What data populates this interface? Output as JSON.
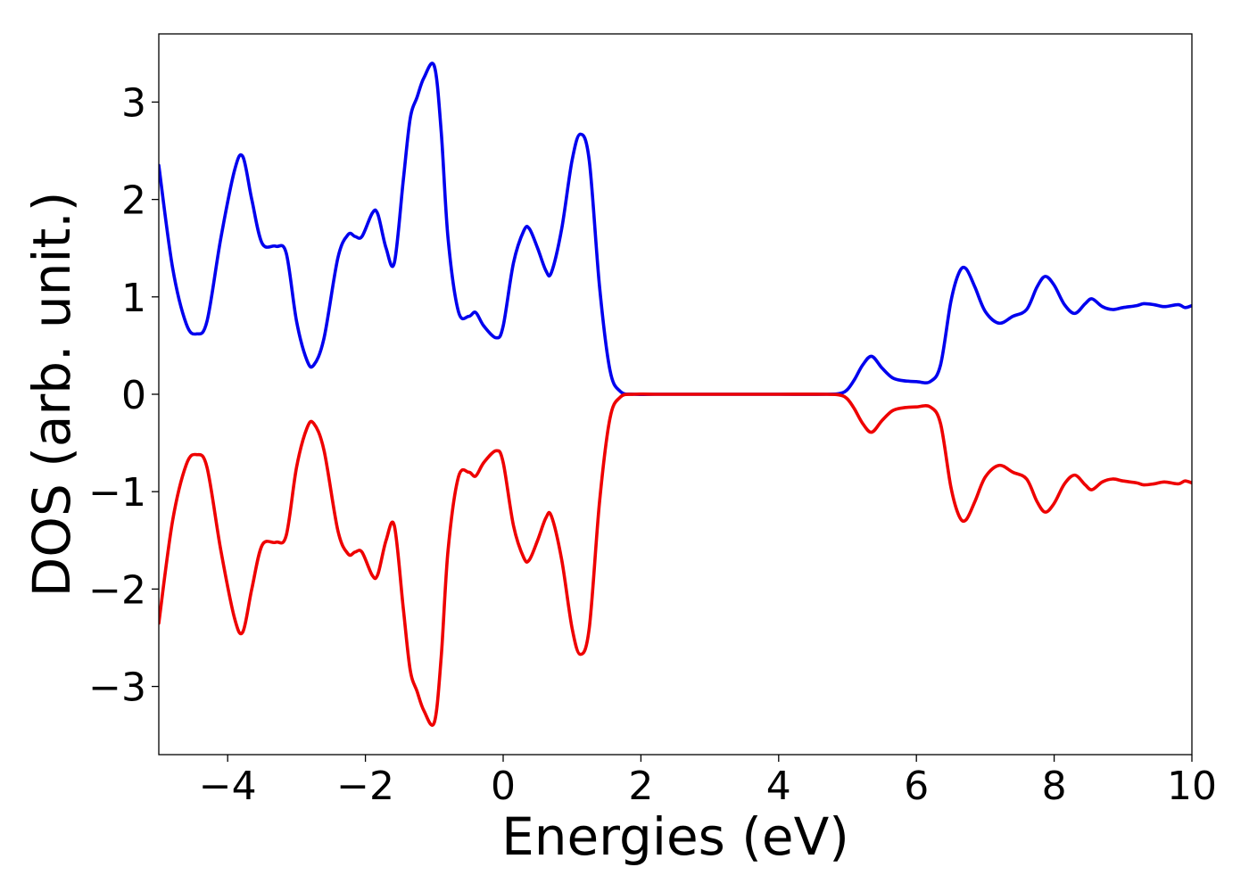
{
  "chart_data": {
    "type": "line",
    "xlabel": "Energies (eV)",
    "ylabel": "DOS (arb. unit.)",
    "xlim": [
      -5,
      10
    ],
    "ylim": [
      -3.7,
      3.7
    ],
    "xticks": [
      -4,
      -2,
      0,
      2,
      4,
      6,
      8,
      10
    ],
    "yticks": [
      -3,
      -2,
      -1,
      0,
      1,
      2,
      3
    ],
    "grid": false,
    "legend": "none",
    "series": [
      {
        "color": "#0000ee",
        "x": [
          -5.0,
          -4.8,
          -4.6,
          -4.45,
          -4.3,
          -4.1,
          -3.9,
          -3.78,
          -3.65,
          -3.5,
          -3.3,
          -3.15,
          -3.0,
          -2.85,
          -2.75,
          -2.6,
          -2.4,
          -2.25,
          -2.15,
          -2.05,
          -1.9,
          -1.82,
          -1.7,
          -1.58,
          -1.45,
          -1.35,
          -1.25,
          -1.15,
          -1.0,
          -0.9,
          -0.8,
          -0.65,
          -0.5,
          -0.4,
          -0.28,
          -0.1,
          0.0,
          0.15,
          0.3,
          0.38,
          0.5,
          0.62,
          0.7,
          0.85,
          1.0,
          1.12,
          1.25,
          1.4,
          1.55,
          1.7,
          1.9,
          2.2,
          3.0,
          4.0,
          4.7,
          4.9,
          5.0,
          5.1,
          5.22,
          5.35,
          5.5,
          5.65,
          5.8,
          6.0,
          6.2,
          6.35,
          6.5,
          6.62,
          6.72,
          6.85,
          7.0,
          7.2,
          7.4,
          7.6,
          7.75,
          7.87,
          8.0,
          8.15,
          8.3,
          8.45,
          8.55,
          8.7,
          8.85,
          9.0,
          9.2,
          9.3,
          9.45,
          9.6,
          9.8,
          9.9,
          10.0
        ],
        "values": [
          2.35,
          1.3,
          0.72,
          0.62,
          0.75,
          1.6,
          2.3,
          2.44,
          2.0,
          1.55,
          1.52,
          1.45,
          0.75,
          0.35,
          0.3,
          0.58,
          1.4,
          1.64,
          1.62,
          1.62,
          1.86,
          1.85,
          1.5,
          1.35,
          2.2,
          2.83,
          3.05,
          3.25,
          3.37,
          2.7,
          1.6,
          0.85,
          0.8,
          0.84,
          0.7,
          0.58,
          0.7,
          1.35,
          1.68,
          1.7,
          1.5,
          1.27,
          1.25,
          1.7,
          2.4,
          2.67,
          2.4,
          1.1,
          0.25,
          0.03,
          0.0,
          0.0,
          0.0,
          0.0,
          0.0,
          0.01,
          0.05,
          0.15,
          0.3,
          0.39,
          0.27,
          0.17,
          0.14,
          0.13,
          0.13,
          0.3,
          0.95,
          1.25,
          1.29,
          1.1,
          0.85,
          0.73,
          0.8,
          0.87,
          1.1,
          1.21,
          1.12,
          0.92,
          0.83,
          0.93,
          0.98,
          0.9,
          0.87,
          0.89,
          0.91,
          0.93,
          0.92,
          0.9,
          0.92,
          0.89,
          0.91
        ]
      },
      {
        "color": "#ee0000",
        "x": [
          -5.0,
          -4.8,
          -4.6,
          -4.45,
          -4.3,
          -4.1,
          -3.9,
          -3.78,
          -3.65,
          -3.5,
          -3.3,
          -3.15,
          -3.0,
          -2.85,
          -2.75,
          -2.6,
          -2.4,
          -2.25,
          -2.15,
          -2.05,
          -1.9,
          -1.82,
          -1.7,
          -1.58,
          -1.45,
          -1.35,
          -1.25,
          -1.15,
          -1.0,
          -0.9,
          -0.8,
          -0.65,
          -0.5,
          -0.4,
          -0.28,
          -0.1,
          0.0,
          0.15,
          0.3,
          0.38,
          0.5,
          0.62,
          0.7,
          0.85,
          1.0,
          1.12,
          1.25,
          1.4,
          1.55,
          1.7,
          1.9,
          2.2,
          3.0,
          4.0,
          4.7,
          4.9,
          5.0,
          5.1,
          5.22,
          5.35,
          5.5,
          5.65,
          5.8,
          6.0,
          6.2,
          6.35,
          6.5,
          6.62,
          6.72,
          6.85,
          7.0,
          7.2,
          7.4,
          7.6,
          7.75,
          7.87,
          8.0,
          8.15,
          8.3,
          8.45,
          8.55,
          8.7,
          8.85,
          9.0,
          9.2,
          9.3,
          9.45,
          9.6,
          9.8,
          9.9,
          10.0
        ],
        "values": [
          -2.35,
          -1.3,
          -0.72,
          -0.62,
          -0.75,
          -1.6,
          -2.3,
          -2.44,
          -2.0,
          -1.55,
          -1.52,
          -1.45,
          -0.75,
          -0.35,
          -0.3,
          -0.58,
          -1.4,
          -1.64,
          -1.62,
          -1.62,
          -1.86,
          -1.85,
          -1.5,
          -1.35,
          -2.2,
          -2.83,
          -3.05,
          -3.25,
          -3.37,
          -2.7,
          -1.6,
          -0.85,
          -0.8,
          -0.84,
          -0.7,
          -0.58,
          -0.7,
          -1.35,
          -1.68,
          -1.7,
          -1.5,
          -1.27,
          -1.25,
          -1.7,
          -2.4,
          -2.67,
          -2.4,
          -1.1,
          -0.25,
          -0.03,
          0.0,
          0.0,
          0.0,
          0.0,
          0.0,
          -0.01,
          -0.05,
          -0.15,
          -0.3,
          -0.39,
          -0.27,
          -0.17,
          -0.14,
          -0.13,
          -0.13,
          -0.3,
          -0.95,
          -1.25,
          -1.29,
          -1.1,
          -0.85,
          -0.73,
          -0.8,
          -0.87,
          -1.1,
          -1.21,
          -1.12,
          -0.92,
          -0.83,
          -0.93,
          -0.98,
          -0.9,
          -0.87,
          -0.89,
          -0.91,
          -0.93,
          -0.92,
          -0.9,
          -0.92,
          -0.89,
          -0.91
        ]
      }
    ]
  }
}
